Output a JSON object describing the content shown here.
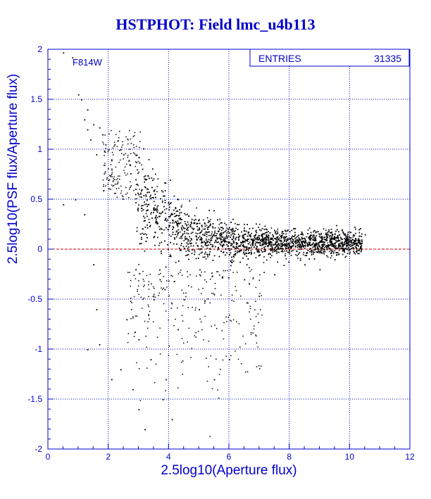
{
  "title": "HSTPHOT: Field lmc_u4b113",
  "filter_label": "F814W",
  "stats": {
    "entries_label": "ENTRIES",
    "entries_value": "31335"
  },
  "colors": {
    "axis": "#0000cc",
    "grid": "#0000cc",
    "points": "#000000",
    "zero_line": "#cc0000",
    "title": "#0000cc"
  },
  "chart_data": {
    "type": "scatter",
    "title": "HSTPHOT: Field lmc_u4b113",
    "xlabel": "2.5log10(Aperture flux)",
    "ylabel": "2.5log10(PSF flux/Aperture flux)",
    "xlim": [
      0,
      12
    ],
    "ylim": [
      -2,
      2
    ],
    "xticks": [
      0,
      2,
      4,
      6,
      8,
      10,
      12
    ],
    "yticks": [
      -2,
      -1.5,
      -1,
      -0.5,
      0,
      0.5,
      1,
      1.5,
      2
    ],
    "xtick_labels": [
      "0",
      "2",
      "4",
      "6",
      "8",
      "10",
      "12"
    ],
    "ytick_labels": [
      "-2",
      "-1.5",
      "-1",
      "-0.5",
      "0",
      "0.5",
      "1",
      "1.5",
      "2"
    ],
    "grid": true,
    "reference_line": {
      "y": 0,
      "style": "dashed"
    },
    "n_entries": 31335,
    "points": [
      [
        0.5,
        1.97
      ],
      [
        0.8,
        1.92
      ],
      [
        1.0,
        1.55
      ],
      [
        1.1,
        1.5
      ],
      [
        1.3,
        1.4
      ],
      [
        1.2,
        1.3
      ],
      [
        1.5,
        1.25
      ],
      [
        1.3,
        1.2
      ],
      [
        1.7,
        1.22
      ],
      [
        1.8,
        1.15
      ],
      [
        1.9,
        1.05
      ],
      [
        2.0,
        1.0
      ],
      [
        2.2,
        1.05
      ],
      [
        2.4,
        1.0
      ],
      [
        2.5,
        0.95
      ],
      [
        2.7,
        0.85
      ],
      [
        2.1,
        0.9
      ],
      [
        1.6,
        0.95
      ],
      [
        1.4,
        1.1
      ],
      [
        0.5,
        0.45
      ],
      [
        0.9,
        0.5
      ],
      [
        1.2,
        0.35
      ],
      [
        1.5,
        -0.15
      ],
      [
        1.6,
        -0.6
      ],
      [
        1.7,
        -0.95
      ],
      [
        1.3,
        -1.0
      ],
      [
        2.1,
        -1.3
      ],
      [
        2.4,
        -1.2
      ],
      [
        2.8,
        -1.4
      ],
      [
        3.0,
        -1.6
      ],
      [
        3.2,
        -1.8
      ],
      [
        3.8,
        -1.5
      ],
      [
        4.1,
        -1.7
      ],
      [
        5.5,
        -1.3
      ],
      [
        6.0,
        -1.1
      ],
      [
        2.6,
        -0.7
      ],
      [
        3.0,
        -0.9
      ],
      [
        3.4,
        -1.1
      ],
      [
        3.9,
        -1.3
      ],
      [
        4.3,
        -0.8
      ],
      [
        5.0,
        -0.6
      ],
      [
        3.5,
        -0.5
      ],
      [
        3.7,
        -0.3
      ],
      [
        2.9,
        -0.2
      ],
      [
        3.1,
        0.6
      ],
      [
        2.9,
        0.7
      ],
      [
        3.0,
        0.55
      ],
      [
        3.3,
        0.45
      ],
      [
        3.5,
        0.42
      ],
      [
        4.0,
        0.4
      ],
      [
        5.0,
        0.3
      ],
      [
        6.0,
        0.22
      ],
      [
        7.0,
        0.2
      ],
      [
        8.0,
        0.18
      ],
      [
        9.0,
        0.15
      ],
      [
        10.0,
        0.12
      ],
      [
        10.3,
        0.2
      ],
      [
        10.5,
        0.15
      ],
      [
        9.5,
        -0.1
      ],
      [
        9.8,
        0.0
      ],
      [
        9.0,
        -0.2
      ],
      [
        8.5,
        -0.15
      ],
      [
        7.5,
        -0.25
      ],
      [
        6.5,
        -0.3
      ],
      [
        5.5,
        -0.45
      ],
      [
        4.5,
        -0.5
      ]
    ]
  }
}
